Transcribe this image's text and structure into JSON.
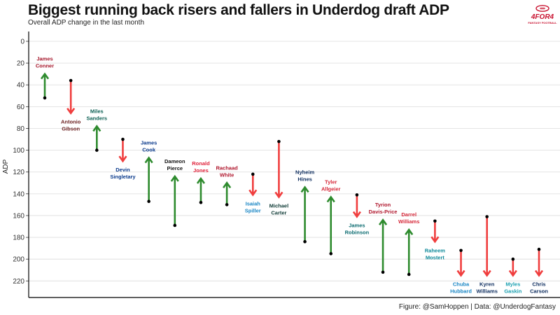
{
  "header": {
    "title": "Biggest running back risers and fallers in Underdog draft ADP",
    "subtitle": "Overall ADP change in the last month"
  },
  "logo": {
    "main": "4FOR4",
    "sub": "FANTASY FOOTBALL",
    "icon": "football-icon",
    "color": "#c8102e"
  },
  "footer": {
    "caption": "Figure: @SamHoppen | Data: @UnderdogFantasy"
  },
  "colors": {
    "riser": "#2e8b2e",
    "faller": "#f03e3e",
    "grid": "#dcdcdc",
    "axis": "#000000"
  },
  "chart_data": {
    "type": "arrow",
    "title": "Biggest running back risers and fallers in Underdog draft ADP",
    "subtitle": "Overall ADP change in the last month",
    "xlabel": "",
    "ylabel": "ADP",
    "y_reversed": true,
    "ylim": [
      0,
      230
    ],
    "yticks": [
      0,
      20,
      40,
      60,
      80,
      100,
      120,
      140,
      160,
      180,
      200,
      220
    ],
    "grid": true,
    "series_note": "start = ADP one month ago (dot), end = current ADP (arrowhead)",
    "players": [
      {
        "name": "James Conner",
        "label_lines": [
          "James",
          "Conner"
        ],
        "start": 52,
        "end": 30,
        "label_color": "#a5162a"
      },
      {
        "name": "Antonio Gibson",
        "label_lines": [
          "Antonio",
          "Gibson"
        ],
        "start": 36,
        "end": 66,
        "label_color": "#6b1f1f"
      },
      {
        "name": "Miles Sanders",
        "label_lines": [
          "Miles",
          "Sanders"
        ],
        "start": 100,
        "end": 78,
        "label_color": "#0a5e52"
      },
      {
        "name": "Devin Singletary",
        "label_lines": [
          "Devin",
          "Singletary"
        ],
        "start": 90,
        "end": 110,
        "label_color": "#0a3a8c"
      },
      {
        "name": "James Cook",
        "label_lines": [
          "James",
          "Cook"
        ],
        "start": 147,
        "end": 107,
        "label_color": "#0a3a8c"
      },
      {
        "name": "Dameon Pierce",
        "label_lines": [
          "Dameon",
          "Pierce"
        ],
        "start": 169,
        "end": 124,
        "label_color": "#141414"
      },
      {
        "name": "Ronald Jones",
        "label_lines": [
          "Ronald",
          "Jones"
        ],
        "start": 148,
        "end": 126,
        "label_color": "#e0243c"
      },
      {
        "name": "Rachaad White",
        "label_lines": [
          "Rachaad",
          "White"
        ],
        "start": 150,
        "end": 130,
        "label_color": "#b0182e"
      },
      {
        "name": "Isaiah Spiller",
        "label_lines": [
          "Isaiah",
          "Spiller"
        ],
        "start": 122,
        "end": 141,
        "label_color": "#1a86c4"
      },
      {
        "name": "Michael Carter",
        "label_lines": [
          "Michael",
          "Carter"
        ],
        "start": 92,
        "end": 143,
        "label_color": "#0f3b36"
      },
      {
        "name": "Nyheim Hines",
        "label_lines": [
          "Nyheim",
          "Hines"
        ],
        "start": 184,
        "end": 134,
        "label_color": "#0a2a5c"
      },
      {
        "name": "Tyler Allgeier",
        "label_lines": [
          "Tyler",
          "Allgeier"
        ],
        "start": 195,
        "end": 143,
        "label_color": "#d62839"
      },
      {
        "name": "James Robinson",
        "label_lines": [
          "James",
          "Robinson"
        ],
        "start": 141,
        "end": 161,
        "label_color": "#0b6b70"
      },
      {
        "name": "Tyrion Davis-Price",
        "label_lines": [
          "Tyrion",
          "Davis-Price"
        ],
        "start": 212,
        "end": 164,
        "label_color": "#b0182e"
      },
      {
        "name": "Darrel Williams",
        "label_lines": [
          "Darrel",
          "Williams"
        ],
        "start": 214,
        "end": 173,
        "label_color": "#d62839"
      },
      {
        "name": "Raheem Mostert",
        "label_lines": [
          "Raheem",
          "Mostert"
        ],
        "start": 165,
        "end": 184,
        "label_color": "#0e8a9a"
      },
      {
        "name": "Chuba Hubbard",
        "label_lines": [
          "Chuba",
          "Hubbard"
        ],
        "start": 192,
        "end": 215,
        "label_color": "#1a86c4"
      },
      {
        "name": "Kyren Williams",
        "label_lines": [
          "Kyren",
          "Williams"
        ],
        "start": 161,
        "end": 215,
        "label_color": "#0a2a5c"
      },
      {
        "name": "Myles Gaskin",
        "label_lines": [
          "Myles",
          "Gaskin"
        ],
        "start": 200,
        "end": 215,
        "label_color": "#1a9fb0"
      },
      {
        "name": "Chris Carson",
        "label_lines": [
          "Chris",
          "Carson"
        ],
        "start": 191,
        "end": 215,
        "label_color": "#0a2a5c"
      }
    ]
  }
}
